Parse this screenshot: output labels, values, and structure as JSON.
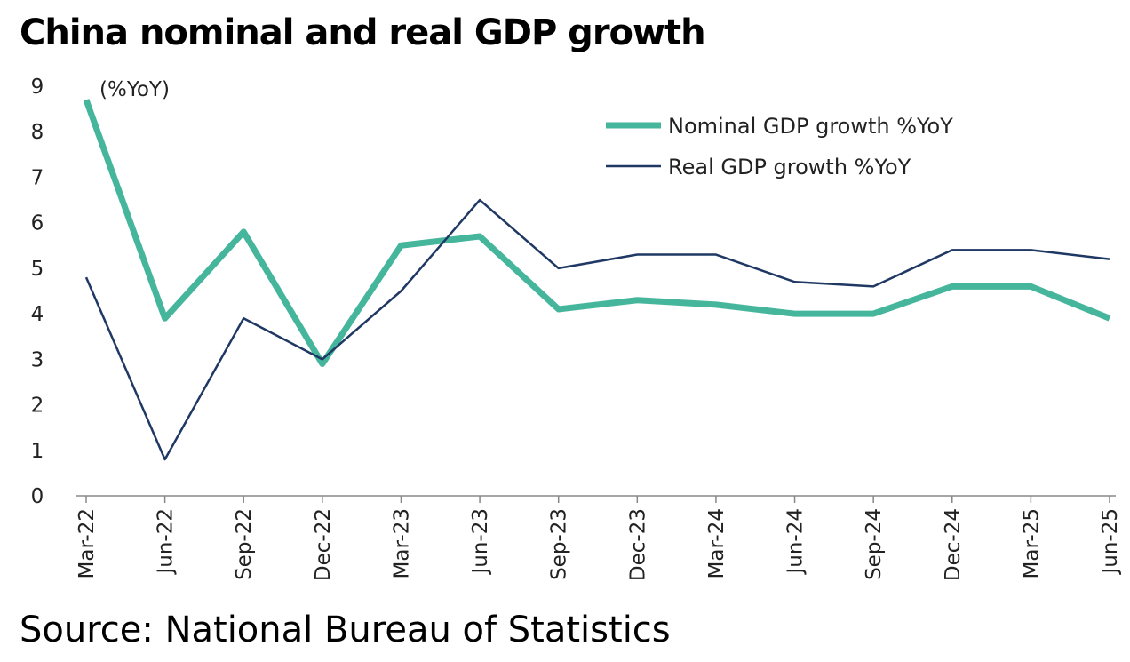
{
  "chart_data": {
    "type": "line",
    "title": "China nominal and real GDP growth",
    "source": "Source: National Bureau of Statistics",
    "ylabel": "(%YoY)",
    "ylim": [
      0,
      9
    ],
    "yticks": [
      "0",
      "1",
      "2",
      "3",
      "4",
      "5",
      "6",
      "7",
      "8",
      "9"
    ],
    "categories": [
      "Mar-22",
      "Jun-22",
      "Sep-22",
      "Dec-22",
      "Mar-23",
      "Jun-23",
      "Sep-23",
      "Dec-23",
      "Mar-24",
      "Jun-24",
      "Sep-24",
      "Dec-24",
      "Mar-25",
      "Jun-25"
    ],
    "legend_position": "top-right",
    "series": [
      {
        "name": "Nominal GDP growth %YoY",
        "color": "#45b69c",
        "values": [
          8.7,
          3.9,
          5.8,
          2.9,
          5.5,
          5.7,
          4.1,
          4.3,
          4.2,
          4.0,
          4.0,
          4.6,
          4.6,
          3.9
        ]
      },
      {
        "name": "Real GDP growth %YoY",
        "color": "#1f3864",
        "values": [
          4.8,
          0.8,
          3.9,
          3.0,
          4.5,
          6.5,
          5.0,
          5.3,
          5.3,
          4.7,
          4.6,
          5.4,
          5.4,
          5.2
        ]
      }
    ]
  }
}
